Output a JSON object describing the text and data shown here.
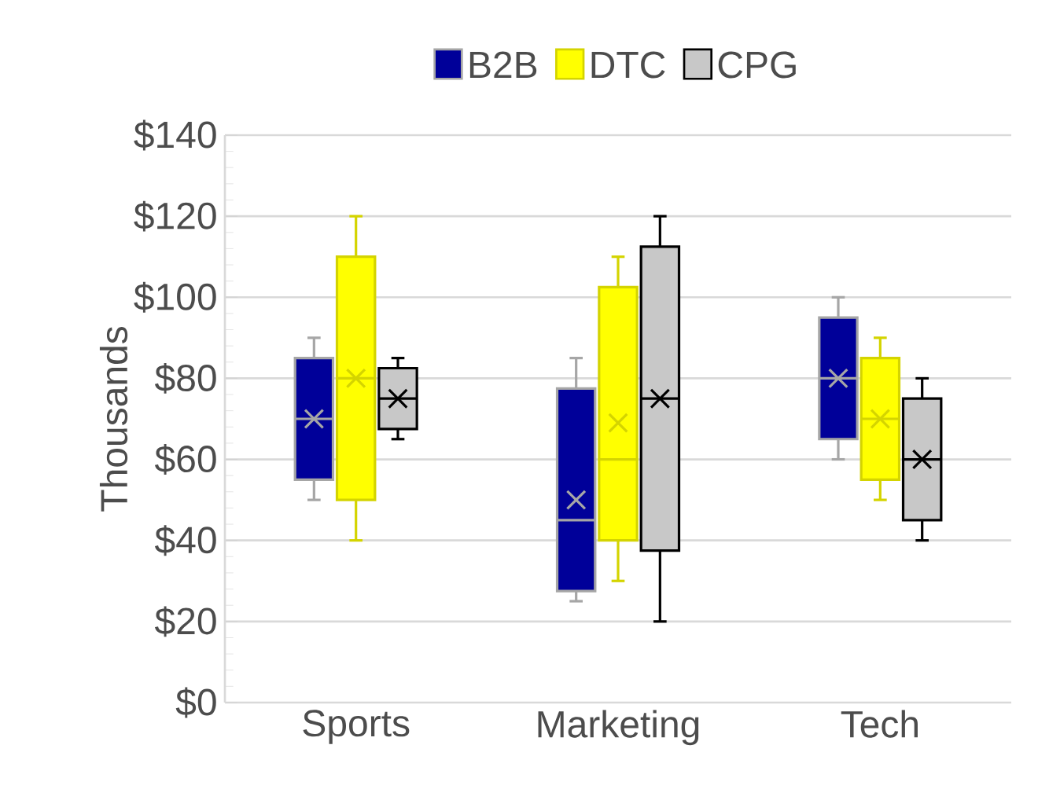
{
  "chart_data": {
    "type": "box",
    "ylabel": "Thousands",
    "categories": [
      "Sports",
      "Marketing",
      "Tech"
    ],
    "ylim": [
      0,
      140
    ],
    "yticks": [
      {
        "value": 0,
        "label": "$0"
      },
      {
        "value": 20,
        "label": "$20"
      },
      {
        "value": 40,
        "label": "$40"
      },
      {
        "value": 60,
        "label": "$60"
      },
      {
        "value": 80,
        "label": "$80"
      },
      {
        "value": 100,
        "label": "$100"
      },
      {
        "value": 120,
        "label": "$120"
      },
      {
        "value": 140,
        "label": "$140"
      }
    ],
    "grid": "y",
    "legend": "top",
    "series": [
      {
        "name": "B2B",
        "color": "#000099",
        "boxes": [
          {
            "low": 50,
            "q1": 55,
            "median": 70,
            "q3": 85,
            "high": 90,
            "mean": 70
          },
          {
            "low": 25,
            "q1": 27.5,
            "median": 45,
            "q3": 77.5,
            "high": 85,
            "mean": 50
          },
          {
            "low": 60,
            "q1": 65,
            "median": 80,
            "q3": 95,
            "high": 100,
            "mean": 80
          }
        ]
      },
      {
        "name": "DTC",
        "color": "#ffff00",
        "boxes": [
          {
            "low": 40,
            "q1": 50,
            "median": 80,
            "q3": 110,
            "high": 120,
            "mean": 80
          },
          {
            "low": 30,
            "q1": 40,
            "median": 60,
            "q3": 102.5,
            "high": 110,
            "mean": 69
          },
          {
            "low": 50,
            "q1": 55,
            "median": 70,
            "q3": 85,
            "high": 90,
            "mean": 70
          }
        ]
      },
      {
        "name": "CPG",
        "color": "#c8c8c8",
        "boxes": [
          {
            "low": 65,
            "q1": 67.5,
            "median": 75,
            "q3": 82.5,
            "high": 85,
            "mean": 75
          },
          {
            "low": 20,
            "q1": 37.5,
            "median": 75,
            "q3": 112.5,
            "high": 120,
            "mean": 75
          },
          {
            "low": 40,
            "q1": 45,
            "median": 60,
            "q3": 75,
            "high": 80,
            "mean": 60
          }
        ]
      }
    ]
  }
}
